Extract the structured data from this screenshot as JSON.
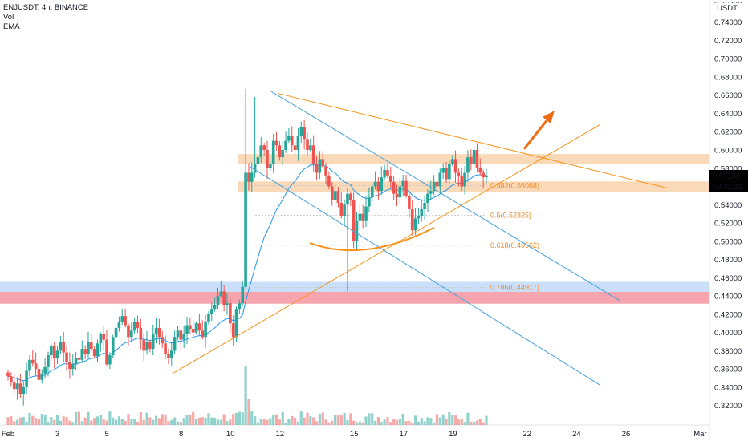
{
  "legend": {
    "symbol": "ENJUSDT, 4h, BINANCE",
    "indicator1": "Vol",
    "indicator2": "EMA"
  },
  "price_axis": {
    "currency": "USDT",
    "ticks": [
      "0.76000",
      "0.74000",
      "0.72000",
      "0.70000",
      "0.68000",
      "0.66000",
      "0.64000",
      "0.62000",
      "0.60000",
      "0.58000",
      "0.54000",
      "0.52000",
      "0.50000",
      "0.48000",
      "0.46000",
      "0.44000",
      "0.42000",
      "0.40000",
      "0.38000",
      "0.36000",
      "0.34000",
      "0.32000"
    ],
    "tick_values": [
      0.76,
      0.74,
      0.72,
      0.7,
      0.68,
      0.66,
      0.64,
      0.62,
      0.6,
      0.58,
      0.54,
      0.52,
      0.5,
      0.48,
      0.46,
      0.44,
      0.42,
      0.4,
      0.38,
      0.36,
      0.34,
      0.32
    ],
    "last_price": "0.57189",
    "last_price_value": 0.57189,
    "countdown": "03:31:22",
    "price_label_color": "#26a69a"
  },
  "time_axis": {
    "ticks": [
      "Feb",
      "3",
      "5",
      "8",
      "10",
      "12",
      "15",
      "17",
      "19",
      "22",
      "24",
      "26",
      "Mar"
    ],
    "tick_days": [
      0,
      2,
      4,
      7,
      9,
      11,
      14,
      16,
      18,
      21,
      23,
      25,
      28
    ]
  },
  "fib_levels": [
    {
      "label": "0.382(0.56088)",
      "value": 0.56088
    },
    {
      "label": "0.5(0.52825)",
      "value": 0.52825
    },
    {
      "label": "0.618(0.49562)",
      "value": 0.49562
    },
    {
      "label": "0.786(0.44917)",
      "value": 0.44917
    }
  ],
  "colors": {
    "up": "#26a69a",
    "down": "#ef5350",
    "ema": "#2196f3",
    "trend_orange": "#f7931a",
    "channel_blue": "#4aa3df",
    "zone_orange": "#f7c089",
    "zone_red": "#f27d8c",
    "zone_blue": "#9ec4f5"
  },
  "chart_data": {
    "type": "candlestick",
    "symbol": "ENJUSDT",
    "interval": "4h",
    "exchange": "BINANCE",
    "ylim": [
      0.31,
      0.76
    ],
    "x_days_range": [
      0,
      28
    ],
    "last_price": 0.57189,
    "closes": [
      0.352,
      0.345,
      0.338,
      0.344,
      0.332,
      0.34,
      0.358,
      0.37,
      0.366,
      0.36,
      0.348,
      0.355,
      0.362,
      0.375,
      0.385,
      0.372,
      0.38,
      0.39,
      0.378,
      0.368,
      0.36,
      0.365,
      0.372,
      0.37,
      0.382,
      0.376,
      0.39,
      0.382,
      0.374,
      0.388,
      0.398,
      0.392,
      0.365,
      0.375,
      0.395,
      0.405,
      0.412,
      0.418,
      0.408,
      0.395,
      0.402,
      0.412,
      0.405,
      0.392,
      0.38,
      0.39,
      0.382,
      0.398,
      0.405,
      0.395,
      0.388,
      0.376,
      0.372,
      0.38,
      0.395,
      0.402,
      0.392,
      0.398,
      0.408,
      0.404,
      0.4,
      0.41,
      0.402,
      0.395,
      0.412,
      0.42,
      0.425,
      0.43,
      0.44,
      0.445,
      0.43,
      0.432,
      0.41,
      0.395,
      0.425,
      0.432,
      0.45,
      0.575,
      0.565,
      0.575,
      0.585,
      0.592,
      0.605,
      0.6,
      0.58,
      0.585,
      0.61,
      0.605,
      0.592,
      0.6,
      0.61,
      0.615,
      0.605,
      0.6,
      0.615,
      0.625,
      0.612,
      0.6,
      0.605,
      0.585,
      0.575,
      0.59,
      0.582,
      0.572,
      0.56,
      0.545,
      0.555,
      0.542,
      0.528,
      0.54,
      0.552,
      0.545,
      0.5,
      0.522,
      0.53,
      0.522,
      0.538,
      0.548,
      0.56,
      0.565,
      0.555,
      0.57,
      0.578,
      0.572,
      0.565,
      0.552,
      0.548,
      0.56,
      0.566,
      0.55,
      0.535,
      0.512,
      0.525,
      0.528,
      0.535,
      0.542,
      0.552,
      0.555,
      0.565,
      0.56,
      0.575,
      0.58,
      0.568,
      0.585,
      0.59,
      0.575,
      0.572,
      0.56,
      0.575,
      0.592,
      0.585,
      0.6,
      0.58,
      0.575,
      0.57,
      0.572
    ]
  }
}
